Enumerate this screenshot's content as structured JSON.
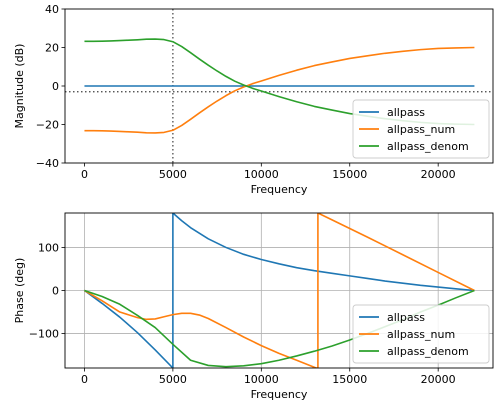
{
  "chart_data": [
    {
      "type": "line",
      "title": "",
      "xlabel": "Frequency",
      "ylabel": "Magnitude (dB)",
      "xlim": [
        -1100,
        23100
      ],
      "ylim": [
        -40,
        40
      ],
      "xticks": [
        0,
        5000,
        10000,
        15000,
        20000
      ],
      "yticks": [
        -40,
        -20,
        0,
        20,
        40
      ],
      "grid": false,
      "legend_position": "lower right",
      "reference_lines": [
        {
          "orientation": "vertical",
          "value": 5000,
          "style": "dotted"
        },
        {
          "orientation": "horizontal",
          "value": -3,
          "style": "dotted"
        }
      ],
      "series": [
        {
          "name": "allpass",
          "color": "#1f77b4",
          "x": [
            0,
            22050
          ],
          "y": [
            0,
            0
          ]
        },
        {
          "name": "allpass_num",
          "color": "#ff7f0e",
          "x": [
            0,
            500,
            1000,
            1500,
            2000,
            2500,
            3000,
            3500,
            4000,
            4500,
            5000,
            5500,
            6000,
            6500,
            7000,
            7500,
            8000,
            8500,
            9000,
            9500,
            10000,
            11000,
            12000,
            13000,
            14000,
            15000,
            16000,
            17000,
            18000,
            19000,
            20000,
            21000,
            22050
          ],
          "y": [
            -23.2,
            -23.2,
            -23.3,
            -23.4,
            -23.6,
            -23.8,
            -24.0,
            -24.3,
            -24.4,
            -24.1,
            -23.0,
            -20.5,
            -17.3,
            -14.0,
            -10.8,
            -7.8,
            -5.0,
            -2.5,
            -0.5,
            1.2,
            2.6,
            5.5,
            8.2,
            10.6,
            12.5,
            14.3,
            15.7,
            17.0,
            18.0,
            18.9,
            19.5,
            19.8,
            20.0
          ]
        },
        {
          "name": "allpass_denom",
          "color": "#2ca02c",
          "x": [
            0,
            500,
            1000,
            1500,
            2000,
            2500,
            3000,
            3500,
            4000,
            4500,
            5000,
            5500,
            6000,
            6500,
            7000,
            7500,
            8000,
            8500,
            9000,
            9500,
            10000,
            11000,
            12000,
            13000,
            14000,
            15000,
            16000,
            17000,
            18000,
            19000,
            20000,
            21000,
            22050
          ],
          "y": [
            23.2,
            23.2,
            23.3,
            23.4,
            23.6,
            23.8,
            24.0,
            24.3,
            24.4,
            24.1,
            23.0,
            20.5,
            17.3,
            14.0,
            10.8,
            7.8,
            5.0,
            2.5,
            0.5,
            -1.2,
            -2.6,
            -5.5,
            -8.2,
            -10.6,
            -12.5,
            -14.3,
            -15.7,
            -17.0,
            -18.0,
            -18.9,
            -19.5,
            -19.8,
            -20.0
          ]
        }
      ]
    },
    {
      "type": "line",
      "title": "",
      "xlabel": "Frequency",
      "ylabel": "Phase (deg)",
      "xlim": [
        -1100,
        23100
      ],
      "ylim": [
        -180,
        180
      ],
      "xticks": [
        0,
        5000,
        10000,
        15000,
        20000
      ],
      "yticks": [
        -100,
        0,
        100
      ],
      "grid": true,
      "legend_position": "lower right",
      "series": [
        {
          "name": "allpass",
          "color": "#1f77b4",
          "x": [
            0,
            1000,
            2000,
            3000,
            4000,
            5000,
            5000,
            5500,
            6000,
            7000,
            8000,
            9000,
            10000,
            11000,
            12000,
            13000,
            14000,
            15000,
            16000,
            17000,
            18000,
            19000,
            20000,
            21000,
            22050
          ],
          "y": [
            0,
            -30,
            -62,
            -98,
            -138,
            -180,
            180,
            162,
            146,
            120,
            100,
            84,
            72,
            62,
            53,
            46,
            40,
            34,
            28,
            22,
            17,
            12,
            8,
            4,
            0
          ]
        },
        {
          "name": "allpass_num",
          "color": "#ff7f0e",
          "x": [
            0,
            1000,
            2000,
            3000,
            3500,
            4000,
            4500,
            5000,
            5500,
            6000,
            6500,
            7000,
            8000,
            9000,
            10000,
            11000,
            12000,
            13100,
            13200,
            13200,
            14000,
            16000,
            18000,
            20000,
            22050
          ],
          "y": [
            0,
            -24,
            -50,
            -63,
            -67,
            -66,
            -61,
            -56,
            -53,
            -53,
            -57,
            -65,
            -86,
            -108,
            -128,
            -146,
            -162,
            -180,
            -180,
            180,
            164,
            124,
            83,
            42,
            0
          ]
        },
        {
          "name": "allpass_denom",
          "color": "#2ca02c",
          "x": [
            0,
            1000,
            2000,
            3000,
            4000,
            5000,
            6000,
            7000,
            8000,
            9000,
            10000,
            11000,
            12000,
            13000,
            14000,
            15000,
            16000,
            17000,
            18000,
            19000,
            20000,
            21000,
            22050
          ],
          "y": [
            0,
            -14,
            -32,
            -58,
            -86,
            -125,
            -162,
            -174,
            -177,
            -175,
            -170,
            -162,
            -152,
            -141,
            -129,
            -115,
            -100,
            -84,
            -68,
            -50,
            -34,
            -17,
            0
          ]
        }
      ]
    }
  ]
}
